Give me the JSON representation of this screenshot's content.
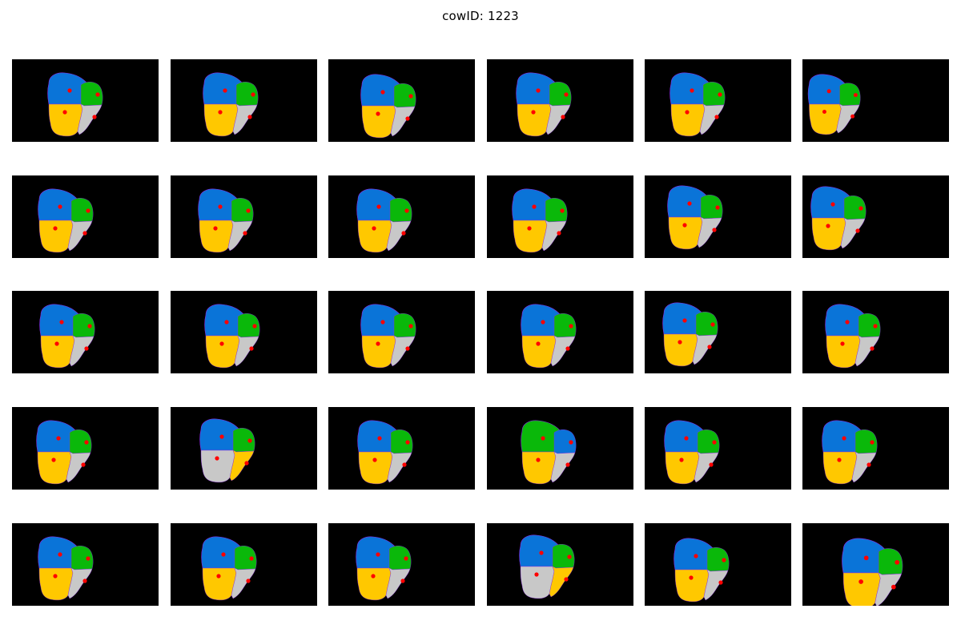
{
  "figure": {
    "title": "cowID: 1223"
  },
  "colors": {
    "background": "#000000",
    "blue_region": "#0a74d8",
    "green_region": "#0ab80a",
    "yellow_region": "#ffc800",
    "gray_region": "#c8c8c8",
    "keypoint": "#ff0000",
    "outline": "#8b2be2"
  },
  "grid": {
    "rows": 5,
    "cols": 6,
    "tiles": [
      {
        "variant": "A"
      },
      {
        "variant": "A"
      },
      {
        "variant": "A"
      },
      {
        "variant": "A"
      },
      {
        "variant": "A"
      },
      {
        "variant": "A"
      },
      {
        "variant": "A"
      },
      {
        "variant": "A"
      },
      {
        "variant": "A"
      },
      {
        "variant": "A"
      },
      {
        "variant": "A"
      },
      {
        "variant": "A"
      },
      {
        "variant": "A"
      },
      {
        "variant": "A"
      },
      {
        "variant": "A"
      },
      {
        "variant": "A"
      },
      {
        "variant": "A"
      },
      {
        "variant": "A"
      },
      {
        "variant": "A"
      },
      {
        "variant": "C"
      },
      {
        "variant": "A"
      },
      {
        "variant": "B"
      },
      {
        "variant": "A"
      },
      {
        "variant": "A"
      },
      {
        "variant": "A"
      },
      {
        "variant": "A"
      },
      {
        "variant": "A"
      },
      {
        "variant": "C"
      },
      {
        "variant": "A"
      },
      {
        "variant": "A"
      }
    ]
  }
}
